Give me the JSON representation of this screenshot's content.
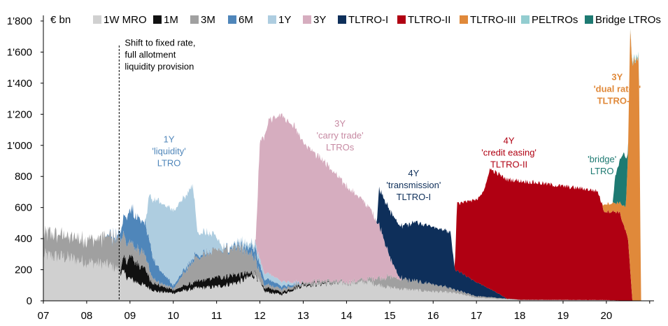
{
  "chart_data": {
    "type": "area",
    "unit_label": "€ bn",
    "y_ticks": [
      "0",
      "200",
      "400",
      "600",
      "800",
      "1'000",
      "1'200",
      "1'400",
      "1'600",
      "1'800"
    ],
    "y_tick_values": [
      0,
      200,
      400,
      600,
      800,
      1000,
      1200,
      1400,
      1600,
      1800
    ],
    "ylim": [
      0,
      1800
    ],
    "x_ticks": [
      "07",
      "08",
      "09",
      "10",
      "11",
      "12",
      "13",
      "14",
      "15",
      "16",
      "17",
      "18",
      "19",
      "20"
    ],
    "x_tick_years": [
      2007,
      2008,
      2009,
      2010,
      2011,
      2012,
      2013,
      2014,
      2015,
      2016,
      2017,
      2018,
      2019,
      2020
    ],
    "xlim": [
      2007.0,
      2021.1
    ],
    "grid": false,
    "legend_position": "top",
    "series": [
      {
        "name": "1W MRO",
        "color": "#d0d0d0",
        "points": [
          [
            2007.0,
            290
          ],
          [
            2007.5,
            280
          ],
          [
            2008.0,
            250
          ],
          [
            2008.5,
            230
          ],
          [
            2008.75,
            200
          ],
          [
            2009.0,
            140
          ],
          [
            2009.4,
            90
          ],
          [
            2009.6,
            60
          ],
          [
            2010.0,
            50
          ],
          [
            2010.5,
            80
          ],
          [
            2011.0,
            90
          ],
          [
            2011.5,
            120
          ],
          [
            2011.9,
            170
          ],
          [
            2012.1,
            60
          ],
          [
            2012.5,
            40
          ],
          [
            2013.0,
            100
          ],
          [
            2013.5,
            110
          ],
          [
            2014.0,
            110
          ],
          [
            2014.5,
            120
          ],
          [
            2015.0,
            85
          ],
          [
            2015.5,
            70
          ],
          [
            2016.0,
            60
          ],
          [
            2016.5,
            50
          ],
          [
            2017.0,
            20
          ],
          [
            2018.0,
            5
          ],
          [
            2019.0,
            5
          ],
          [
            2020.0,
            5
          ],
          [
            2020.5,
            0
          ],
          [
            2020.9,
            0
          ]
        ]
      },
      {
        "name": "1M",
        "color": "#111111",
        "points": [
          [
            2007.0,
            0
          ],
          [
            2008.75,
            0
          ],
          [
            2008.85,
            80
          ],
          [
            2009.0,
            150
          ],
          [
            2009.3,
            110
          ],
          [
            2009.5,
            50
          ],
          [
            2010.0,
            20
          ],
          [
            2010.5,
            40
          ],
          [
            2011.0,
            60
          ],
          [
            2011.5,
            50
          ],
          [
            2011.9,
            10
          ],
          [
            2012.0,
            0
          ],
          [
            2012.2,
            30
          ],
          [
            2012.5,
            15
          ],
          [
            2013.0,
            10
          ],
          [
            2013.5,
            5
          ],
          [
            2014.0,
            0
          ],
          [
            2020.9,
            0
          ]
        ]
      },
      {
        "name": "3M",
        "color": "#a0a0a0",
        "points": [
          [
            2007.0,
            140
          ],
          [
            2007.5,
            140
          ],
          [
            2008.0,
            150
          ],
          [
            2008.5,
            180
          ],
          [
            2008.75,
            190
          ],
          [
            2009.0,
            90
          ],
          [
            2009.3,
            100
          ],
          [
            2009.6,
            20
          ],
          [
            2010.0,
            10
          ],
          [
            2010.5,
            150
          ],
          [
            2011.0,
            170
          ],
          [
            2011.5,
            180
          ],
          [
            2011.9,
            100
          ],
          [
            2012.1,
            20
          ],
          [
            2012.5,
            20
          ],
          [
            2013.0,
            10
          ],
          [
            2013.5,
            15
          ],
          [
            2014.0,
            10
          ],
          [
            2014.5,
            20
          ],
          [
            2015.0,
            70
          ],
          [
            2015.5,
            60
          ],
          [
            2016.0,
            50
          ],
          [
            2016.5,
            20
          ],
          [
            2017.0,
            10
          ],
          [
            2018.0,
            2
          ],
          [
            2020.0,
            0
          ],
          [
            2020.9,
            0
          ]
        ]
      },
      {
        "name": "6M",
        "color": "#4f86ba",
        "points": [
          [
            2007.0,
            0
          ],
          [
            2008.4,
            0
          ],
          [
            2008.75,
            20
          ],
          [
            2009.0,
            220
          ],
          [
            2009.4,
            200
          ],
          [
            2009.6,
            100
          ],
          [
            2010.0,
            20
          ],
          [
            2010.3,
            20
          ],
          [
            2010.5,
            20
          ],
          [
            2011.0,
            0
          ],
          [
            2011.6,
            20
          ],
          [
            2011.9,
            60
          ],
          [
            2012.1,
            40
          ],
          [
            2012.5,
            20
          ],
          [
            2013.0,
            0
          ],
          [
            2020.9,
            0
          ]
        ]
      },
      {
        "name": "1Y",
        "color": "#aecde0",
        "points": [
          [
            2007.0,
            0
          ],
          [
            2009.35,
            0
          ],
          [
            2009.45,
            300
          ],
          [
            2009.6,
            420
          ],
          [
            2010.0,
            480
          ],
          [
            2010.3,
            460
          ],
          [
            2010.45,
            480
          ],
          [
            2010.55,
            150
          ],
          [
            2010.9,
            110
          ],
          [
            2011.2,
            0
          ],
          [
            2012.1,
            40
          ],
          [
            2012.5,
            30
          ],
          [
            2013.0,
            0
          ],
          [
            2020.9,
            0
          ]
        ]
      },
      {
        "name": "3Y",
        "color": "#d6adbf",
        "points": [
          [
            2007.0,
            0
          ],
          [
            2011.9,
            0
          ],
          [
            2012.0,
            760
          ],
          [
            2012.2,
            980
          ],
          [
            2012.5,
            1070
          ],
          [
            2012.8,
            1000
          ],
          [
            2013.0,
            900
          ],
          [
            2013.5,
            760
          ],
          [
            2014.0,
            620
          ],
          [
            2014.5,
            470
          ],
          [
            2014.8,
            310
          ],
          [
            2015.0,
            120
          ],
          [
            2015.2,
            20
          ],
          [
            2015.3,
            0
          ],
          [
            2020.9,
            0
          ]
        ]
      },
      {
        "name": "TLTRO-I",
        "color": "#0e2f5a",
        "points": [
          [
            2007.0,
            0
          ],
          [
            2014.7,
            0
          ],
          [
            2014.75,
            230
          ],
          [
            2015.0,
            300
          ],
          [
            2015.2,
            330
          ],
          [
            2015.6,
            380
          ],
          [
            2016.0,
            370
          ],
          [
            2016.4,
            360
          ],
          [
            2016.5,
            130
          ],
          [
            2017.0,
            90
          ],
          [
            2017.5,
            30
          ],
          [
            2017.7,
            0
          ],
          [
            2020.9,
            0
          ]
        ]
      },
      {
        "name": "TLTRO-II",
        "color": "#b00012",
        "points": [
          [
            2007.0,
            0
          ],
          [
            2016.5,
            0
          ],
          [
            2016.55,
            430
          ],
          [
            2017.0,
            530
          ],
          [
            2017.2,
            630
          ],
          [
            2017.3,
            770
          ],
          [
            2018.0,
            765
          ],
          [
            2018.5,
            750
          ],
          [
            2019.0,
            730
          ],
          [
            2019.5,
            715
          ],
          [
            2019.8,
            700
          ],
          [
            2019.95,
            570
          ],
          [
            2020.3,
            570
          ],
          [
            2020.5,
            400
          ],
          [
            2020.6,
            0
          ],
          [
            2020.9,
            0
          ]
        ]
      },
      {
        "name": "TLTRO-III",
        "color": "#e0893a",
        "points": [
          [
            2007.0,
            0
          ],
          [
            2019.9,
            0
          ],
          [
            2019.95,
            50
          ],
          [
            2020.0,
            50
          ],
          [
            2020.3,
            60
          ],
          [
            2020.45,
            160
          ],
          [
            2020.5,
            550
          ],
          [
            2020.55,
            1530
          ],
          [
            2020.75,
            1560
          ],
          [
            2020.8,
            0
          ],
          [
            2020.9,
            0
          ]
        ]
      },
      {
        "name": "PELTROs",
        "color": "#93cdd0",
        "points": [
          [
            2007.0,
            0
          ],
          [
            2020.5,
            0
          ],
          [
            2020.6,
            15
          ],
          [
            2020.75,
            20
          ],
          [
            2020.8,
            0
          ],
          [
            2020.9,
            0
          ]
        ]
      },
      {
        "name": "Bridge LTROs",
        "color": "#1e7a72",
        "points": [
          [
            2007.0,
            0
          ],
          [
            2020.15,
            0
          ],
          [
            2020.2,
            170
          ],
          [
            2020.3,
            260
          ],
          [
            2020.4,
            350
          ],
          [
            2020.45,
            300
          ],
          [
            2020.5,
            0
          ],
          [
            2020.9,
            0
          ]
        ]
      }
    ],
    "annotations": [
      {
        "id": "fixed-rate",
        "lines": [
          "Shift to fixed rate,",
          "full allotment",
          "liquidity provision"
        ],
        "x": 2008.75,
        "y": 1640,
        "color": "#000000"
      },
      {
        "id": "ltro-1y",
        "lines": [
          "1Y",
          "'liquidity'",
          "LTRO"
        ],
        "x": 2009.9,
        "y": 1020,
        "color": "#4f86ba"
      },
      {
        "id": "ltro-3y",
        "lines": [
          "3Y",
          "'carry trade'",
          "LTROs"
        ],
        "x": 2013.85,
        "y": 1120,
        "color": "#c78aa3"
      },
      {
        "id": "tltro-1",
        "lines": [
          "4Y",
          "'transmission'",
          "TLTRO-I"
        ],
        "x": 2015.55,
        "y": 800,
        "color": "#0e2f5a"
      },
      {
        "id": "tltro-2",
        "lines": [
          "4Y",
          "'credit easing'",
          "TLTRO-II"
        ],
        "x": 2017.75,
        "y": 1010,
        "color": "#b00012"
      },
      {
        "id": "bridge",
        "lines": [
          "'bridge'",
          "LTRO"
        ],
        "x": 2019.9,
        "y": 890,
        "color": "#1e7a72"
      },
      {
        "id": "tltro-3",
        "lines": [
          "3Y",
          "'dual rates'",
          "TLTRO-III"
        ],
        "x": 2020.25,
        "y": 1420,
        "color": "#e0893a"
      }
    ],
    "vline_x": 2008.75
  }
}
